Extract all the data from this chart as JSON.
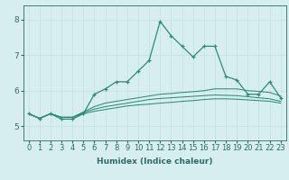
{
  "title": "",
  "xlabel": "Humidex (Indice chaleur)",
  "ylabel": "",
  "bg_color": "#d6eef0",
  "line_color": "#2e8b77",
  "grid_color": "#c4dfe2",
  "x_ticks": [
    0,
    1,
    2,
    3,
    4,
    5,
    6,
    7,
    8,
    9,
    10,
    11,
    12,
    13,
    14,
    15,
    16,
    17,
    18,
    19,
    20,
    21,
    22,
    23
  ],
  "y_ticks": [
    5,
    6,
    7,
    8
  ],
  "ylim": [
    4.6,
    8.4
  ],
  "xlim": [
    -0.5,
    23.5
  ],
  "series": [
    [
      5.35,
      5.22,
      5.35,
      5.2,
      5.2,
      5.35,
      5.9,
      6.05,
      6.25,
      6.25,
      6.55,
      6.85,
      7.95,
      7.55,
      7.25,
      6.95,
      7.25,
      7.25,
      6.4,
      6.3,
      5.9,
      5.9,
      6.25,
      5.8
    ],
    [
      5.35,
      5.22,
      5.35,
      5.25,
      5.25,
      5.4,
      5.55,
      5.65,
      5.7,
      5.75,
      5.8,
      5.85,
      5.9,
      5.92,
      5.95,
      5.97,
      6.0,
      6.05,
      6.05,
      6.05,
      6.0,
      5.98,
      5.95,
      5.85
    ],
    [
      5.35,
      5.22,
      5.35,
      5.25,
      5.25,
      5.38,
      5.48,
      5.55,
      5.6,
      5.65,
      5.7,
      5.75,
      5.78,
      5.8,
      5.82,
      5.84,
      5.86,
      5.88,
      5.87,
      5.86,
      5.83,
      5.8,
      5.77,
      5.7
    ],
    [
      5.35,
      5.22,
      5.35,
      5.25,
      5.25,
      5.35,
      5.42,
      5.47,
      5.52,
      5.57,
      5.6,
      5.62,
      5.65,
      5.67,
      5.7,
      5.72,
      5.75,
      5.77,
      5.77,
      5.76,
      5.74,
      5.72,
      5.7,
      5.65
    ]
  ],
  "tick_fontsize": 6,
  "xlabel_fontsize": 6.5,
  "tick_color": "#2e6b65",
  "spine_color": "#2e6b65"
}
